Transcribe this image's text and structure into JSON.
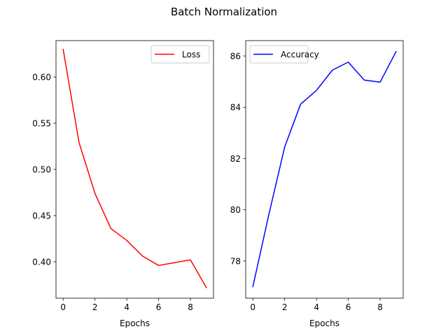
{
  "title": "Batch Normalization",
  "chart_data": [
    {
      "type": "line",
      "xlabel": "Epochs",
      "ylabel": "",
      "xlim": [
        -0.45,
        9.45
      ],
      "ylim": [
        0.3605,
        0.6395
      ],
      "xticks": [
        0,
        2,
        4,
        6,
        8
      ],
      "yticks": [
        0.4,
        0.45,
        0.5,
        0.55,
        0.6
      ],
      "ytick_labels": [
        "0.40",
        "0.45",
        "0.50",
        "0.55",
        "0.60"
      ],
      "grid": false,
      "legend": "upper right",
      "series": [
        {
          "name": "Loss",
          "color": "#ff0000",
          "x": [
            0,
            1,
            2,
            3,
            4,
            5,
            6,
            7,
            8,
            9
          ],
          "values": [
            0.63,
            0.529,
            0.474,
            0.436,
            0.423,
            0.406,
            0.396,
            0.399,
            0.402,
            0.372
          ]
        }
      ]
    },
    {
      "type": "line",
      "xlabel": "Epochs",
      "ylabel": "",
      "xlim": [
        -0.45,
        9.45
      ],
      "ylim": [
        76.55,
        86.6
      ],
      "xticks": [
        0,
        2,
        4,
        6,
        8
      ],
      "yticks": [
        78,
        80,
        82,
        84,
        86
      ],
      "ytick_labels": [
        "78",
        "80",
        "82",
        "84",
        "86"
      ],
      "grid": false,
      "legend": "upper left",
      "series": [
        {
          "name": "Accuracy",
          "color": "#0000ff",
          "x": [
            0,
            1,
            2,
            3,
            4,
            5,
            6,
            7,
            8,
            9
          ],
          "values": [
            77.0,
            79.8,
            82.45,
            84.12,
            84.66,
            85.45,
            85.76,
            85.06,
            84.98,
            86.17
          ]
        }
      ]
    }
  ]
}
